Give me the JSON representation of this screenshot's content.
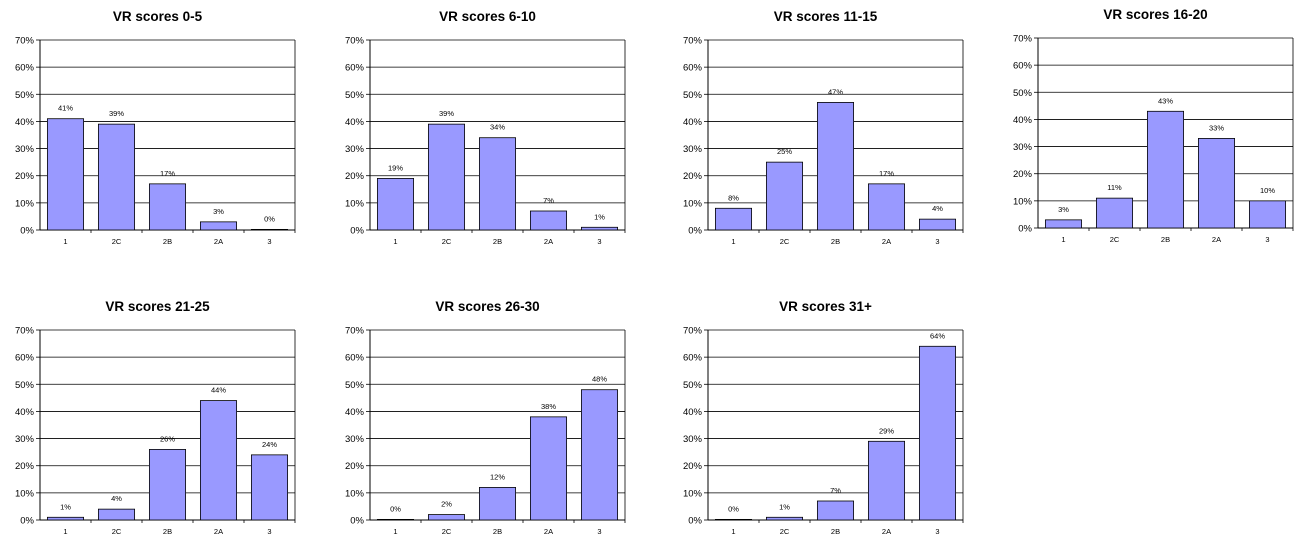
{
  "style": {
    "bar_fill": "#9999ff",
    "bar_stroke": "#000000",
    "grid_color": "#000000"
  },
  "chart_data": [
    {
      "type": "bar",
      "title": "VR scores 0-5",
      "categories": [
        "1",
        "2C",
        "2B",
        "2A",
        "3"
      ],
      "values": [
        41,
        39,
        17,
        3,
        0
      ],
      "data_labels": [
        "41%",
        "39%",
        "17%",
        "3%",
        "0%"
      ],
      "ylim": [
        0,
        70
      ],
      "yticks": [
        "0%",
        "10%",
        "20%",
        "30%",
        "40%",
        "50%",
        "60%",
        "70%"
      ],
      "grid": true,
      "legend": "none"
    },
    {
      "type": "bar",
      "title": "VR scores 6-10",
      "categories": [
        "1",
        "2C",
        "2B",
        "2A",
        "3"
      ],
      "values": [
        19,
        39,
        34,
        7,
        1
      ],
      "data_labels": [
        "19%",
        "39%",
        "34%",
        "7%",
        "1%"
      ],
      "ylim": [
        0,
        70
      ],
      "yticks": [
        "0%",
        "10%",
        "20%",
        "30%",
        "40%",
        "50%",
        "60%",
        "70%"
      ],
      "grid": true,
      "legend": "none"
    },
    {
      "type": "bar",
      "title": "VR scores 11-15",
      "categories": [
        "1",
        "2C",
        "2B",
        "2A",
        "3"
      ],
      "values": [
        8,
        25,
        47,
        17,
        4
      ],
      "data_labels": [
        "8%",
        "25%",
        "47%",
        "17%",
        "4%"
      ],
      "ylim": [
        0,
        70
      ],
      "yticks": [
        "0%",
        "10%",
        "20%",
        "30%",
        "40%",
        "50%",
        "60%",
        "70%"
      ],
      "grid": true,
      "legend": "none"
    },
    {
      "type": "bar",
      "title": "VR scores 16-20",
      "categories": [
        "1",
        "2C",
        "2B",
        "2A",
        "3"
      ],
      "values": [
        3,
        11,
        43,
        33,
        10
      ],
      "data_labels": [
        "3%",
        "11%",
        "43%",
        "33%",
        "10%"
      ],
      "ylim": [
        0,
        70
      ],
      "yticks": [
        "0%",
        "10%",
        "20%",
        "30%",
        "40%",
        "50%",
        "60%",
        "70%"
      ],
      "grid": true,
      "legend": "none"
    },
    {
      "type": "bar",
      "title": "VR scores 21-25",
      "categories": [
        "1",
        "2C",
        "2B",
        "2A",
        "3"
      ],
      "values": [
        1,
        4,
        26,
        44,
        24
      ],
      "data_labels": [
        "1%",
        "4%",
        "26%",
        "44%",
        "24%"
      ],
      "ylim": [
        0,
        70
      ],
      "yticks": [
        "0%",
        "10%",
        "20%",
        "30%",
        "40%",
        "50%",
        "60%",
        "70%"
      ],
      "grid": true,
      "legend": "none"
    },
    {
      "type": "bar",
      "title": "VR scores 26-30",
      "categories": [
        "1",
        "2C",
        "2B",
        "2A",
        "3"
      ],
      "values": [
        0,
        2,
        12,
        38,
        48
      ],
      "data_labels": [
        "0%",
        "2%",
        "12%",
        "38%",
        "48%"
      ],
      "ylim": [
        0,
        70
      ],
      "yticks": [
        "0%",
        "10%",
        "20%",
        "30%",
        "40%",
        "50%",
        "60%",
        "70%"
      ],
      "grid": true,
      "legend": "none"
    },
    {
      "type": "bar",
      "title": "VR scores 31+",
      "categories": [
        "1",
        "2C",
        "2B",
        "2A",
        "3"
      ],
      "values": [
        0,
        1,
        7,
        29,
        64
      ],
      "data_labels": [
        "0%",
        "1%",
        "7%",
        "29%",
        "64%"
      ],
      "ylim": [
        0,
        70
      ],
      "yticks": [
        "0%",
        "10%",
        "20%",
        "30%",
        "40%",
        "50%",
        "60%",
        "70%"
      ],
      "grid": true,
      "legend": "none"
    }
  ]
}
